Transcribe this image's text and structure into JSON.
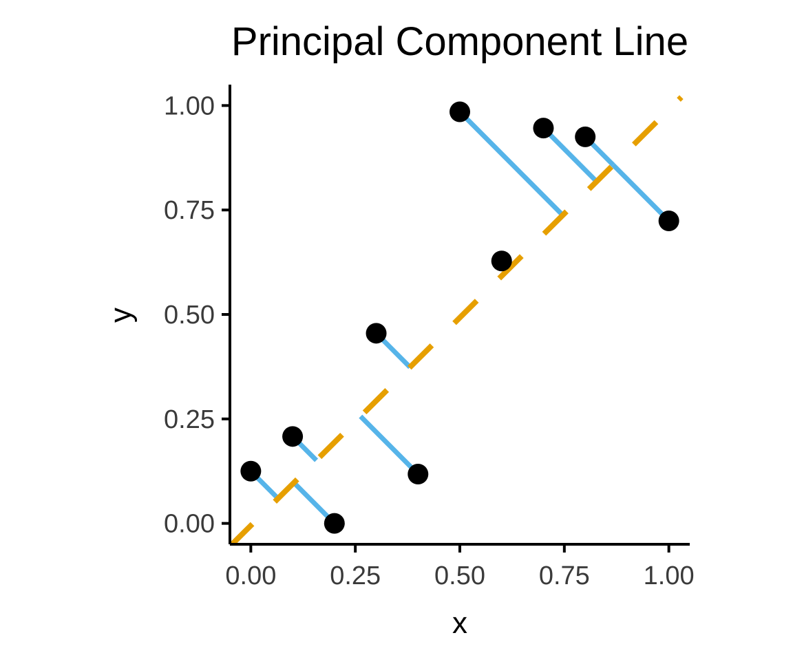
{
  "chart_data": {
    "type": "scatter",
    "title": "Principal Component Line",
    "xlabel": "x",
    "ylabel": "y",
    "xlim": [
      -0.05,
      1.05
    ],
    "ylim": [
      -0.05,
      1.05
    ],
    "x_ticks": [
      0,
      0.25,
      0.5,
      0.75,
      1.0
    ],
    "x_tick_labels": [
      "0.00",
      "0.25",
      "0.50",
      "0.75",
      "1.00"
    ],
    "y_ticks": [
      0,
      0.25,
      0.5,
      0.75,
      1.0
    ],
    "y_tick_labels": [
      "0.00",
      "0.25",
      "0.50",
      "0.75",
      "1.00"
    ],
    "grid": false,
    "legend": "none",
    "points": [
      {
        "x": 0.0,
        "y": 0.125
      },
      {
        "x": 0.1,
        "y": 0.208
      },
      {
        "x": 0.2,
        "y": 0.0
      },
      {
        "x": 0.3,
        "y": 0.455
      },
      {
        "x": 0.4,
        "y": 0.118
      },
      {
        "x": 0.5,
        "y": 0.985
      },
      {
        "x": 0.6,
        "y": 0.628
      },
      {
        "x": 0.7,
        "y": 0.946
      },
      {
        "x": 0.8,
        "y": 0.925
      },
      {
        "x": 1.0,
        "y": 0.724
      }
    ],
    "principal_component_line": {
      "x": [
        -0.05,
        1.03
      ],
      "y": [
        -0.055,
        1.02
      ],
      "style": "dashed"
    },
    "colors": {
      "points": "#000000",
      "principal_component_line": "#E69F00",
      "projection_segments": "#56B4E9",
      "axes": "#000000",
      "tick_labels": "#3a3a3a"
    }
  }
}
